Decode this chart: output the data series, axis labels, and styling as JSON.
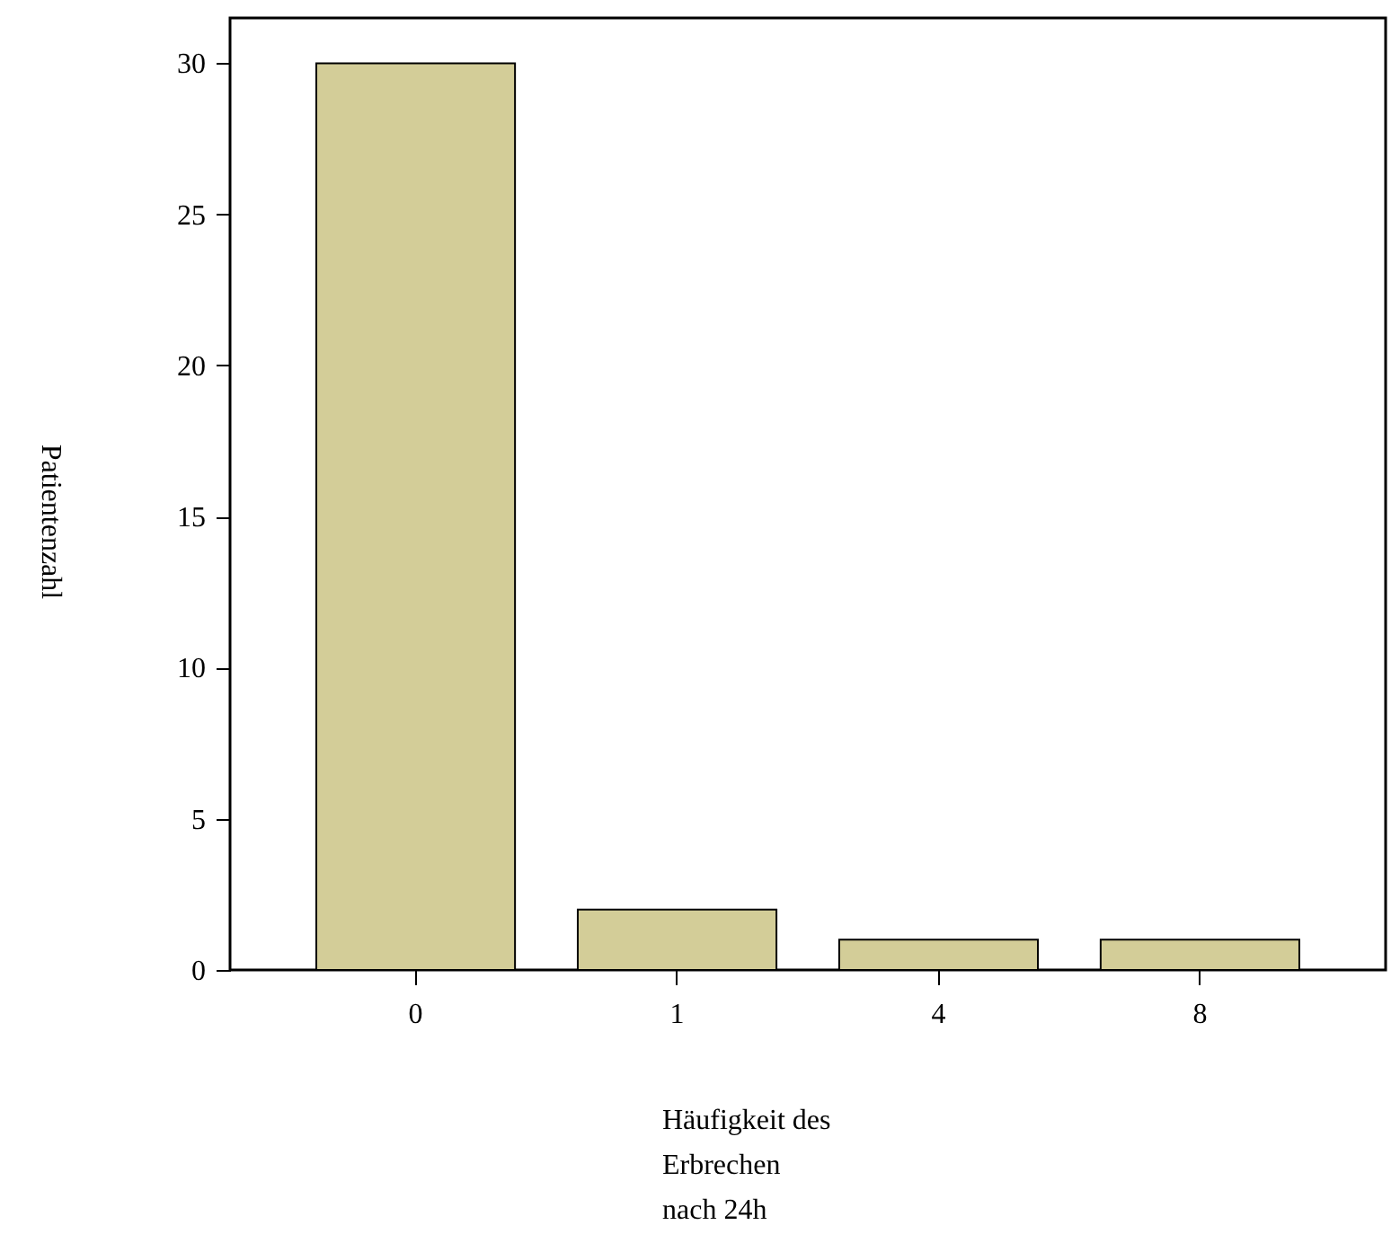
{
  "chart_data": {
    "type": "bar",
    "xlabel": "Häufigkeit des\nErbrechen\nnach 24h",
    "ylabel": "Patientenzahl",
    "categories": [
      "0",
      "1",
      "4",
      "8"
    ],
    "values": [
      30,
      2,
      1,
      1
    ],
    "color": "#d3cd98",
    "ylim": [
      0,
      31.5
    ],
    "yticks": [
      0,
      5,
      10,
      15,
      20,
      25,
      30
    ],
    "grid": false
  }
}
